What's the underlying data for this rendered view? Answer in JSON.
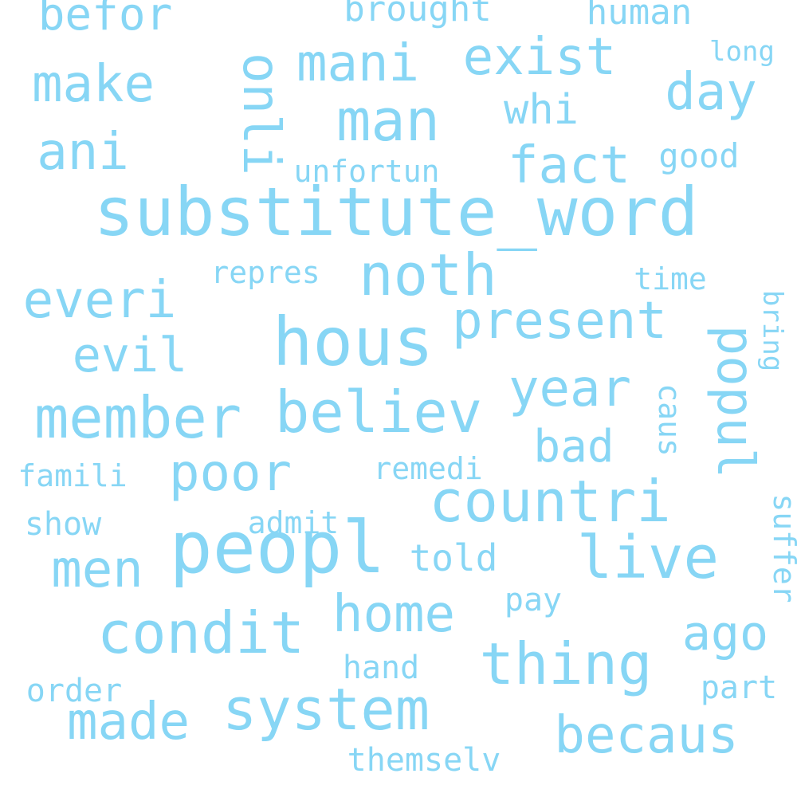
{
  "colors": {
    "background": "#ffffff",
    "word": "#87d6f5"
  },
  "words": [
    {
      "text": "substitute_word"
    },
    {
      "text": "peopl"
    },
    {
      "text": "hous"
    },
    {
      "text": "countri"
    },
    {
      "text": "system"
    },
    {
      "text": "thing"
    },
    {
      "text": "condit"
    },
    {
      "text": "member"
    },
    {
      "text": "becaus"
    },
    {
      "text": "live"
    },
    {
      "text": "believ"
    },
    {
      "text": "noth"
    },
    {
      "text": "present"
    },
    {
      "text": "man"
    },
    {
      "text": "mani"
    },
    {
      "text": "exist"
    },
    {
      "text": "popul"
    },
    {
      "text": "poor"
    },
    {
      "text": "year"
    },
    {
      "text": "made"
    },
    {
      "text": "men"
    },
    {
      "text": "fact"
    },
    {
      "text": "everi"
    },
    {
      "text": "home"
    },
    {
      "text": "make"
    },
    {
      "text": "day"
    },
    {
      "text": "ani"
    },
    {
      "text": "ago"
    },
    {
      "text": "onli"
    },
    {
      "text": "evil"
    },
    {
      "text": "bad"
    },
    {
      "text": "befor"
    },
    {
      "text": "whi"
    },
    {
      "text": "told"
    },
    {
      "text": "human"
    },
    {
      "text": "brought"
    },
    {
      "text": "good"
    },
    {
      "text": "unfortun"
    },
    {
      "text": "repres"
    },
    {
      "text": "time"
    },
    {
      "text": "caus"
    },
    {
      "text": "remedi"
    },
    {
      "text": "famili"
    },
    {
      "text": "admit"
    },
    {
      "text": "show"
    },
    {
      "text": "suffer"
    },
    {
      "text": "pay"
    },
    {
      "text": "hand"
    },
    {
      "text": "order"
    },
    {
      "text": "part"
    },
    {
      "text": "themselv"
    },
    {
      "text": "long"
    },
    {
      "text": "bring"
    }
  ]
}
